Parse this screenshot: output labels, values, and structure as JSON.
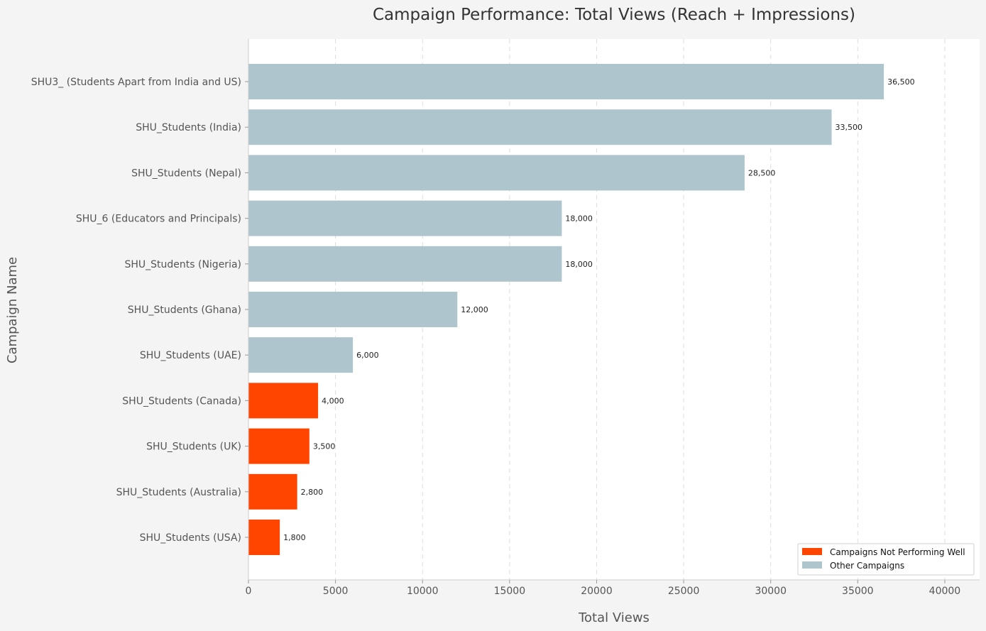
{
  "chart_data": {
    "type": "bar",
    "orientation": "horizontal",
    "title": "Campaign Performance: Total Views (Reach + Impressions)",
    "xlabel": "Total Views",
    "ylabel": "Campaign Name",
    "xlim": [
      0,
      42000
    ],
    "x_ticks": [
      0,
      5000,
      10000,
      15000,
      20000,
      25000,
      30000,
      35000,
      40000
    ],
    "grid": "vertical dashed",
    "legend_position": "bottom-right",
    "categories": [
      "SHU3_ (Students Apart from India and US)",
      "SHU_Students (India)",
      "SHU_Students (Nepal)",
      "SHU_6 (Educators and Principals)",
      "SHU_Students (Nigeria)",
      "SHU_Students (Ghana)",
      "SHU_Students (UAE)",
      "SHU_Students (Canada)",
      "SHU_Students (UK)",
      "SHU_Students (Australia)",
      "SHU_Students (USA)"
    ],
    "values": [
      36500,
      33500,
      28500,
      18000,
      18000,
      12000,
      6000,
      4000,
      3500,
      2800,
      1800
    ],
    "value_labels": [
      "36,500",
      "33,500",
      "28,500",
      "18,000",
      "18,000",
      "12,000",
      "6,000",
      "4,000",
      "3,500",
      "2,800",
      "1,800"
    ],
    "groups": [
      "other",
      "other",
      "other",
      "other",
      "other",
      "other",
      "other",
      "underperforming",
      "underperforming",
      "underperforming",
      "underperforming"
    ],
    "legend": [
      {
        "key": "underperforming",
        "label": "Campaigns Not Performing Well",
        "color": "#ff4500"
      },
      {
        "key": "other",
        "label": "Other Campaigns",
        "color": "#aec5cd"
      }
    ]
  }
}
